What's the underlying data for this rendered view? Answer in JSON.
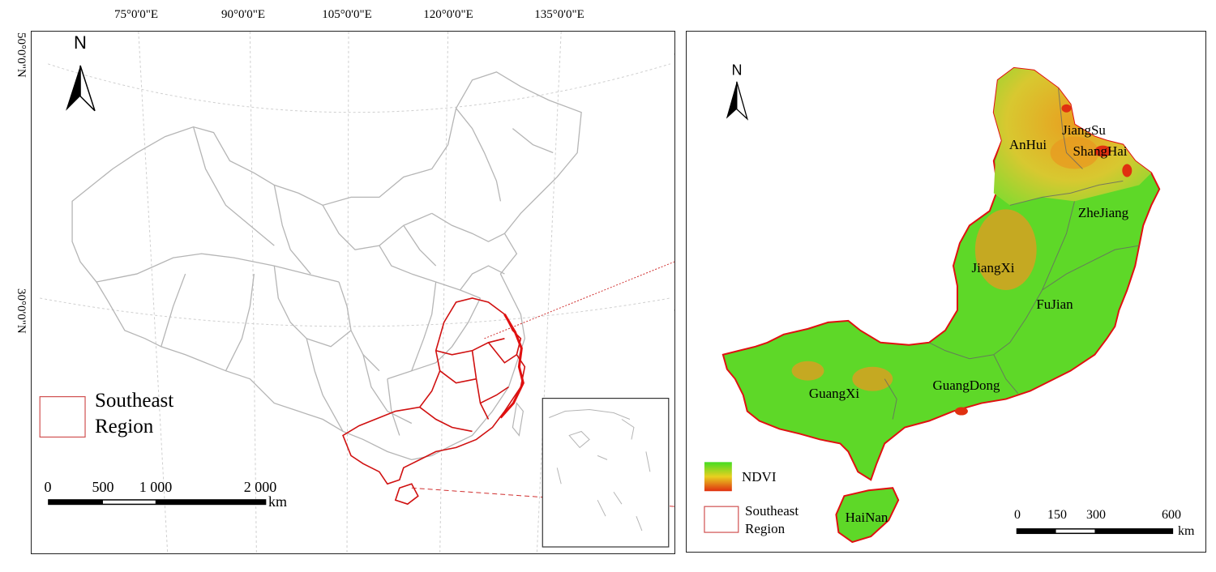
{
  "left_map": {
    "north_label": "N",
    "longitude_labels": [
      "75°0'0\"E",
      "90°0'0\"E",
      "105°0'0\"E",
      "120°0'0\"E",
      "135°0'0\"E"
    ],
    "latitude_labels": [
      "50°0'0\"N",
      "30°0'0\"N"
    ],
    "legend": {
      "line1": "Southeast",
      "line2": "Region",
      "color": "#d03030"
    },
    "scale": {
      "ticks": [
        "0",
        "500",
        "1 000",
        "2 000"
      ],
      "unit": "km"
    },
    "colors": {
      "boundary": "#b5b5b5",
      "region": "#d01010",
      "graticule": "#cccccc"
    }
  },
  "right_map": {
    "north_label": "N",
    "provinces": [
      "JiangSu",
      "AnHui",
      "ShangHai",
      "ZheJiang",
      "JiangXi",
      "FuJian",
      "GuangXi",
      "GuangDong",
      "HaiNan"
    ],
    "legend": {
      "ndvi_label": "NDVI",
      "region_line1": "Southeast",
      "region_line2": "Region"
    },
    "scale": {
      "ticks": [
        "0",
        "150",
        "300",
        "600"
      ],
      "unit": "km"
    },
    "colors": {
      "ndvi_high": "#44dd22",
      "ndvi_mid": "#e8d020",
      "ndvi_low": "#e03010"
    }
  }
}
